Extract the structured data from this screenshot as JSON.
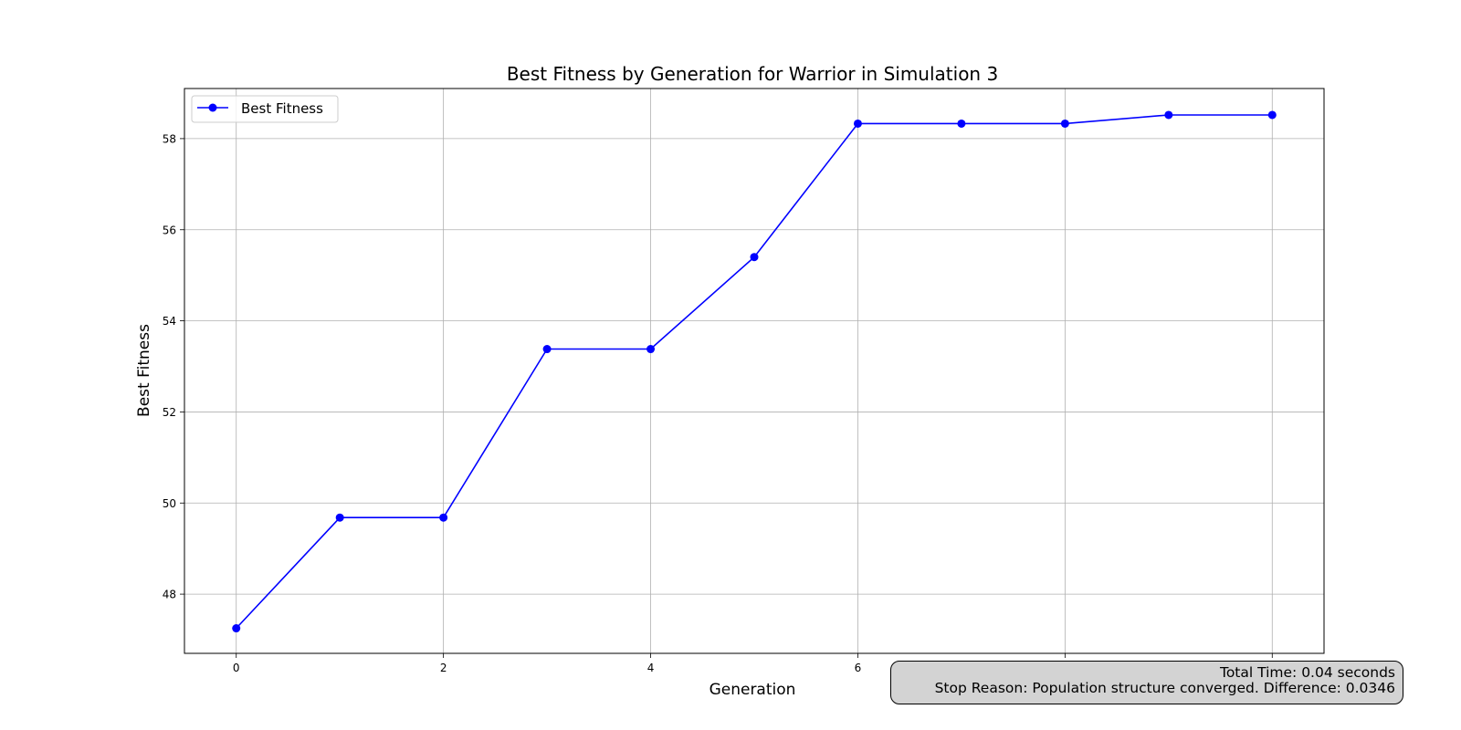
{
  "chart_data": {
    "type": "line",
    "title": "Best Fitness by Generation for Warrior in Simulation 3",
    "xlabel": "Generation",
    "ylabel": "Best Fitness",
    "xlim": [
      -0.5,
      10.5
    ],
    "ylim": [
      46.7,
      59.1
    ],
    "xticks": [
      0,
      2,
      4,
      6,
      8,
      10
    ],
    "xtick_labels": [
      "0",
      "2",
      "4",
      "6",
      "",
      ""
    ],
    "yticks": [
      48,
      50,
      52,
      54,
      56,
      58
    ],
    "ytick_labels": [
      "48",
      "50",
      "52",
      "54",
      "56",
      "58"
    ],
    "grid": true,
    "legend_position": "top-left",
    "series": [
      {
        "name": "Best Fitness",
        "color": "#0000ff",
        "marker": "circle",
        "x": [
          0,
          1,
          2,
          3,
          4,
          5,
          6,
          7,
          8,
          9,
          10
        ],
        "y": [
          47.25,
          49.68,
          49.68,
          53.38,
          53.38,
          55.4,
          58.33,
          58.33,
          58.33,
          58.52,
          58.52
        ]
      }
    ]
  },
  "info_box": {
    "total_time": "Total Time: 0.04 seconds",
    "stop_reason": "Stop Reason: Population structure converged. Difference: 0.0346"
  }
}
